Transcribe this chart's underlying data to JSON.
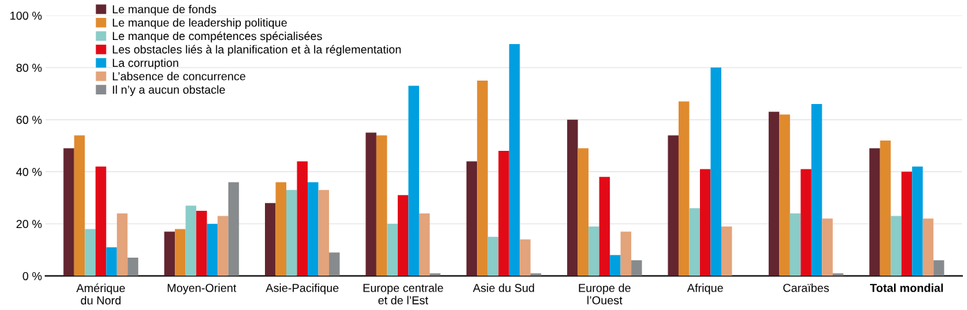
{
  "chart_data": {
    "type": "bar",
    "categories": [
      "Amérique\ndu Nord",
      "Moyen-Orient",
      "Asie-Pacifique",
      "Europe centrale\net de l’Est",
      "Asie du Sud",
      "Europe de\nl’Ouest",
      "Afrique",
      "Caraïbes",
      "Total mondial"
    ],
    "series": [
      {
        "name": "Le manque de fonds",
        "color": "#63252f",
        "values": [
          49,
          17,
          28,
          55,
          44,
          60,
          54,
          63,
          49
        ]
      },
      {
        "name": "Le manque de leadership politique",
        "color": "#e08a2e",
        "values": [
          54,
          18,
          36,
          54,
          75,
          49,
          67,
          62,
          52
        ]
      },
      {
        "name": "Le manque de compétences spécialisées",
        "color": "#89ccc8",
        "values": [
          18,
          27,
          33,
          20,
          15,
          19,
          26,
          24,
          23
        ]
      },
      {
        "name": "Les obstacles liés à la planification et à la réglementation",
        "color": "#e30a17",
        "values": [
          42,
          25,
          44,
          31,
          48,
          38,
          41,
          41,
          40
        ]
      },
      {
        "name": "La corruption",
        "color": "#009fe0",
        "values": [
          11,
          20,
          36,
          73,
          89,
          8,
          80,
          66,
          42
        ]
      },
      {
        "name": "L’absence de concurrence",
        "color": "#e3a37b",
        "values": [
          24,
          23,
          33,
          24,
          14,
          17,
          19,
          22,
          22
        ]
      },
      {
        "name": "Il n’y a aucun obstacle",
        "color": "#878b8d",
        "values": [
          7,
          36,
          9,
          1,
          1,
          6,
          null,
          1,
          6
        ]
      }
    ],
    "ylim": [
      0,
      100
    ],
    "yticks": [
      {
        "value": 0,
        "label": "0 %"
      },
      {
        "value": 20,
        "label": "20 %"
      },
      {
        "value": 40,
        "label": "40 %"
      },
      {
        "value": 60,
        "label": "60 %"
      },
      {
        "value": 80,
        "label": "80 %"
      },
      {
        "value": 100,
        "label": "100 %"
      }
    ],
    "grid": "y",
    "legend": "top left"
  }
}
